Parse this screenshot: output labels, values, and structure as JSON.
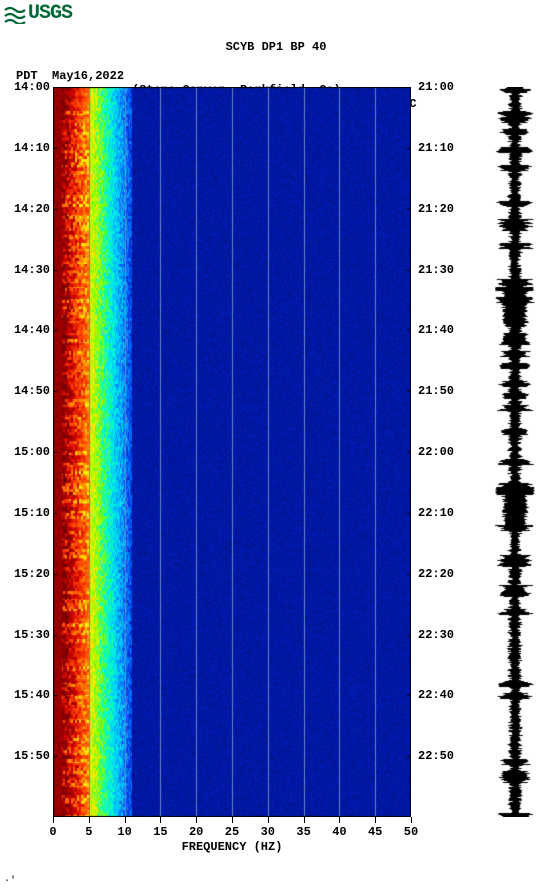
{
  "logo": {
    "text": "USGS",
    "color": "#006837"
  },
  "header": {
    "title": "SCYB DP1 BP 40",
    "line2_left": "PDT  May16,2022",
    "line2_mid": "(Stone Canyon, Parkfield, Ca)",
    "line2_right": "UTC"
  },
  "chart": {
    "type": "spectrogram",
    "background_color": "#ffffff",
    "x_axis": {
      "label": "FREQUENCY (HZ)",
      "min": 0,
      "max": 50,
      "ticks": [
        0,
        5,
        10,
        15,
        20,
        25,
        30,
        35,
        40,
        45,
        50
      ],
      "label_fontsize": 12
    },
    "y_axis_left": {
      "label": "PDT",
      "ticks": [
        "14:00",
        "14:10",
        "14:20",
        "14:30",
        "14:40",
        "14:50",
        "15:00",
        "15:10",
        "15:20",
        "15:30",
        "15:40",
        "15:50"
      ],
      "positions_pct": [
        0,
        8.33,
        16.67,
        25.0,
        33.33,
        41.67,
        50.0,
        58.33,
        66.67,
        75.0,
        83.33,
        91.67
      ]
    },
    "y_axis_right": {
      "label": "UTC",
      "ticks": [
        "21:00",
        "21:10",
        "21:20",
        "21:30",
        "21:40",
        "21:50",
        "22:00",
        "22:10",
        "22:20",
        "22:30",
        "22:40",
        "22:50"
      ],
      "positions_pct": [
        0,
        8.33,
        16.67,
        25.0,
        33.33,
        41.67,
        50.0,
        58.33,
        66.67,
        75.0,
        83.33,
        91.67
      ]
    },
    "colormap": {
      "stops": [
        "#660000",
        "#cc0000",
        "#ff4400",
        "#ff9900",
        "#ffee00",
        "#88ff00",
        "#00ffcc",
        "#00ccff",
        "#0066ff",
        "#0022cc",
        "#001188"
      ],
      "low_freq_band_hz": 6,
      "gridline_color": "#6688cc",
      "gridline_x_positions_hz": [
        5,
        10,
        15,
        20,
        25,
        30,
        35,
        40,
        45
      ]
    },
    "spectral_data": {
      "description": "Energy concentrated 0-6 Hz (red/orange/yellow), fading through cyan to deep blue beyond ~10 Hz. Vertical gridlines every 5 Hz.",
      "rows": 180,
      "energy_peak_hz_range": [
        0,
        4
      ],
      "transition_hz_range": [
        4,
        10
      ],
      "background_hz_range": [
        10,
        50
      ]
    },
    "seismogram_trace": {
      "color": "#000000",
      "amplitude_norm": 1.0,
      "samples": 730
    }
  }
}
